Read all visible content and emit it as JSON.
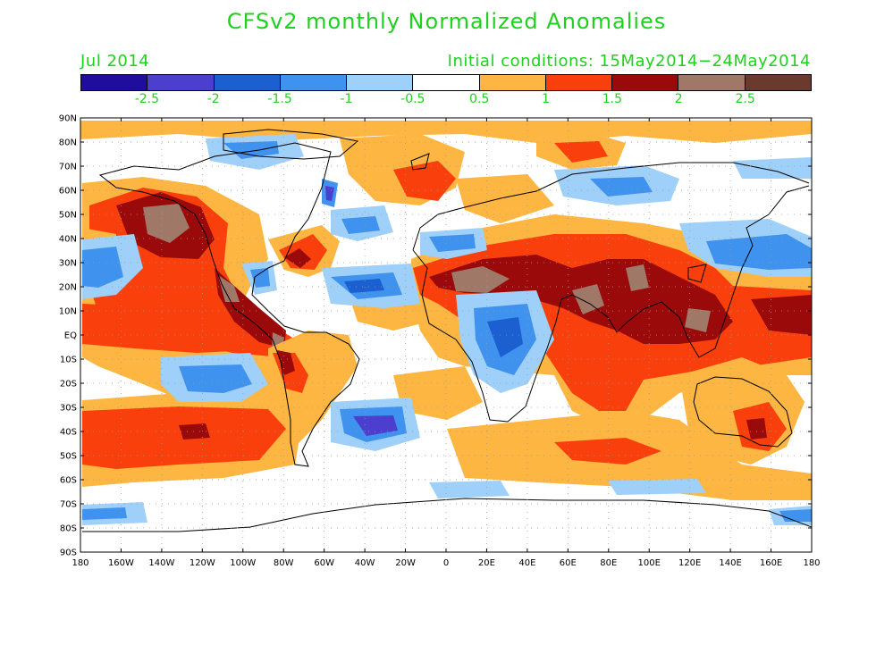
{
  "title": "CFSv2 monthly Normalized Anomalies",
  "month": "Jul 2014",
  "initial_conditions": "Initial conditions: 15May2014−24May2014",
  "colorbar": {
    "colors": [
      "#1f0e9e",
      "#4c3fcf",
      "#1b5fd0",
      "#3f92ee",
      "#9fd0fa",
      "#ffffff",
      "#fcb641",
      "#f9400c",
      "#9b0a0a",
      "#a07868",
      "#6a3a2e"
    ],
    "labels": [
      "-2.5",
      "-2",
      "-1.5",
      "-1",
      "-0.5",
      "0.5",
      "1",
      "1.5",
      "2",
      "2.5"
    ]
  },
  "map": {
    "lat_labels": [
      "90N",
      "80N",
      "70N",
      "60N",
      "50N",
      "40N",
      "30N",
      "20N",
      "10N",
      "EQ",
      "10S",
      "20S",
      "30S",
      "40S",
      "50S",
      "60S",
      "70S",
      "80S",
      "90S"
    ],
    "lon_labels": [
      "180",
      "160W",
      "140W",
      "120W",
      "100W",
      "80W",
      "60W",
      "40W",
      "20W",
      "0",
      "20E",
      "40E",
      "60E",
      "80E",
      "100E",
      "120E",
      "140E",
      "160E",
      "180"
    ]
  }
}
